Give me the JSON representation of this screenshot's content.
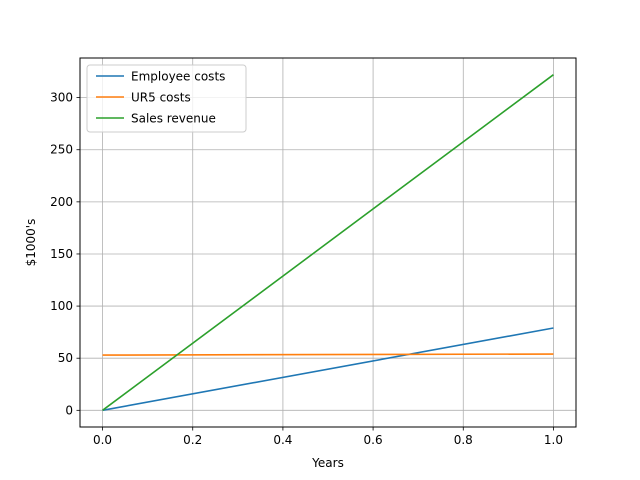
{
  "chart_data": {
    "type": "line",
    "title": "",
    "xlabel": "Years",
    "ylabel": "$1000's",
    "xlim": [
      -0.05,
      1.05
    ],
    "ylim": [
      -16,
      338
    ],
    "xticks": [
      0.0,
      0.2,
      0.4,
      0.6,
      0.8,
      1.0
    ],
    "xtick_labels": [
      "0.0",
      "0.2",
      "0.4",
      "0.6",
      "0.8",
      "1.0"
    ],
    "yticks": [
      0,
      50,
      100,
      150,
      200,
      250,
      300
    ],
    "ytick_labels": [
      "0",
      "50",
      "100",
      "150",
      "200",
      "250",
      "300"
    ],
    "grid": true,
    "legend_position": "top-left",
    "series": [
      {
        "name": "Employee costs",
        "color": "#1f77b4",
        "x": [
          0.0,
          1.0
        ],
        "y": [
          0,
          79
        ]
      },
      {
        "name": "UR5 costs",
        "color": "#ff7f0e",
        "x": [
          0.0,
          1.0
        ],
        "y": [
          53,
          54
        ]
      },
      {
        "name": "Sales revenue",
        "color": "#2ca02c",
        "x": [
          0.0,
          1.0
        ],
        "y": [
          0,
          322
        ]
      }
    ]
  }
}
